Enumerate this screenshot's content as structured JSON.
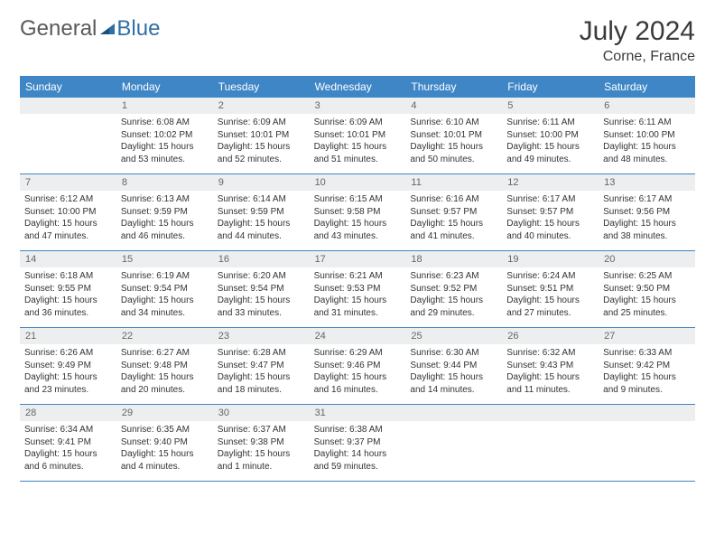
{
  "logo": {
    "general": "General",
    "blue": "Blue"
  },
  "title": {
    "month": "July 2024",
    "location": "Corne, France"
  },
  "colors": {
    "header_blue": "#3f86c6",
    "logo_blue": "#2f6fa8",
    "logo_gray": "#5a5a5a",
    "daybar_bg": "#eceeef",
    "text": "#333333",
    "page_bg": "#ffffff"
  },
  "dayNames": [
    "Sunday",
    "Monday",
    "Tuesday",
    "Wednesday",
    "Thursday",
    "Friday",
    "Saturday"
  ],
  "weeks": [
    [
      {
        "num": "",
        "lines": []
      },
      {
        "num": "1",
        "lines": [
          "Sunrise: 6:08 AM",
          "Sunset: 10:02 PM",
          "Daylight: 15 hours and 53 minutes."
        ]
      },
      {
        "num": "2",
        "lines": [
          "Sunrise: 6:09 AM",
          "Sunset: 10:01 PM",
          "Daylight: 15 hours and 52 minutes."
        ]
      },
      {
        "num": "3",
        "lines": [
          "Sunrise: 6:09 AM",
          "Sunset: 10:01 PM",
          "Daylight: 15 hours and 51 minutes."
        ]
      },
      {
        "num": "4",
        "lines": [
          "Sunrise: 6:10 AM",
          "Sunset: 10:01 PM",
          "Daylight: 15 hours and 50 minutes."
        ]
      },
      {
        "num": "5",
        "lines": [
          "Sunrise: 6:11 AM",
          "Sunset: 10:00 PM",
          "Daylight: 15 hours and 49 minutes."
        ]
      },
      {
        "num": "6",
        "lines": [
          "Sunrise: 6:11 AM",
          "Sunset: 10:00 PM",
          "Daylight: 15 hours and 48 minutes."
        ]
      }
    ],
    [
      {
        "num": "7",
        "lines": [
          "Sunrise: 6:12 AM",
          "Sunset: 10:00 PM",
          "Daylight: 15 hours and 47 minutes."
        ]
      },
      {
        "num": "8",
        "lines": [
          "Sunrise: 6:13 AM",
          "Sunset: 9:59 PM",
          "Daylight: 15 hours and 46 minutes."
        ]
      },
      {
        "num": "9",
        "lines": [
          "Sunrise: 6:14 AM",
          "Sunset: 9:59 PM",
          "Daylight: 15 hours and 44 minutes."
        ]
      },
      {
        "num": "10",
        "lines": [
          "Sunrise: 6:15 AM",
          "Sunset: 9:58 PM",
          "Daylight: 15 hours and 43 minutes."
        ]
      },
      {
        "num": "11",
        "lines": [
          "Sunrise: 6:16 AM",
          "Sunset: 9:57 PM",
          "Daylight: 15 hours and 41 minutes."
        ]
      },
      {
        "num": "12",
        "lines": [
          "Sunrise: 6:17 AM",
          "Sunset: 9:57 PM",
          "Daylight: 15 hours and 40 minutes."
        ]
      },
      {
        "num": "13",
        "lines": [
          "Sunrise: 6:17 AM",
          "Sunset: 9:56 PM",
          "Daylight: 15 hours and 38 minutes."
        ]
      }
    ],
    [
      {
        "num": "14",
        "lines": [
          "Sunrise: 6:18 AM",
          "Sunset: 9:55 PM",
          "Daylight: 15 hours and 36 minutes."
        ]
      },
      {
        "num": "15",
        "lines": [
          "Sunrise: 6:19 AM",
          "Sunset: 9:54 PM",
          "Daylight: 15 hours and 34 minutes."
        ]
      },
      {
        "num": "16",
        "lines": [
          "Sunrise: 6:20 AM",
          "Sunset: 9:54 PM",
          "Daylight: 15 hours and 33 minutes."
        ]
      },
      {
        "num": "17",
        "lines": [
          "Sunrise: 6:21 AM",
          "Sunset: 9:53 PM",
          "Daylight: 15 hours and 31 minutes."
        ]
      },
      {
        "num": "18",
        "lines": [
          "Sunrise: 6:23 AM",
          "Sunset: 9:52 PM",
          "Daylight: 15 hours and 29 minutes."
        ]
      },
      {
        "num": "19",
        "lines": [
          "Sunrise: 6:24 AM",
          "Sunset: 9:51 PM",
          "Daylight: 15 hours and 27 minutes."
        ]
      },
      {
        "num": "20",
        "lines": [
          "Sunrise: 6:25 AM",
          "Sunset: 9:50 PM",
          "Daylight: 15 hours and 25 minutes."
        ]
      }
    ],
    [
      {
        "num": "21",
        "lines": [
          "Sunrise: 6:26 AM",
          "Sunset: 9:49 PM",
          "Daylight: 15 hours and 23 minutes."
        ]
      },
      {
        "num": "22",
        "lines": [
          "Sunrise: 6:27 AM",
          "Sunset: 9:48 PM",
          "Daylight: 15 hours and 20 minutes."
        ]
      },
      {
        "num": "23",
        "lines": [
          "Sunrise: 6:28 AM",
          "Sunset: 9:47 PM",
          "Daylight: 15 hours and 18 minutes."
        ]
      },
      {
        "num": "24",
        "lines": [
          "Sunrise: 6:29 AM",
          "Sunset: 9:46 PM",
          "Daylight: 15 hours and 16 minutes."
        ]
      },
      {
        "num": "25",
        "lines": [
          "Sunrise: 6:30 AM",
          "Sunset: 9:44 PM",
          "Daylight: 15 hours and 14 minutes."
        ]
      },
      {
        "num": "26",
        "lines": [
          "Sunrise: 6:32 AM",
          "Sunset: 9:43 PM",
          "Daylight: 15 hours and 11 minutes."
        ]
      },
      {
        "num": "27",
        "lines": [
          "Sunrise: 6:33 AM",
          "Sunset: 9:42 PM",
          "Daylight: 15 hours and 9 minutes."
        ]
      }
    ],
    [
      {
        "num": "28",
        "lines": [
          "Sunrise: 6:34 AM",
          "Sunset: 9:41 PM",
          "Daylight: 15 hours and 6 minutes."
        ]
      },
      {
        "num": "29",
        "lines": [
          "Sunrise: 6:35 AM",
          "Sunset: 9:40 PM",
          "Daylight: 15 hours and 4 minutes."
        ]
      },
      {
        "num": "30",
        "lines": [
          "Sunrise: 6:37 AM",
          "Sunset: 9:38 PM",
          "Daylight: 15 hours and 1 minute."
        ]
      },
      {
        "num": "31",
        "lines": [
          "Sunrise: 6:38 AM",
          "Sunset: 9:37 PM",
          "Daylight: 14 hours and 59 minutes."
        ]
      },
      {
        "num": "",
        "lines": []
      },
      {
        "num": "",
        "lines": []
      },
      {
        "num": "",
        "lines": []
      }
    ]
  ]
}
